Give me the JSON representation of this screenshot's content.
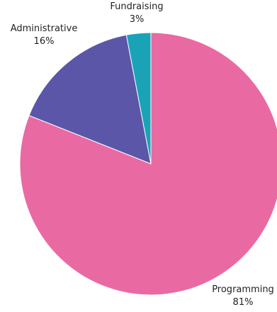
{
  "chart_data": {
    "type": "pie",
    "title": "",
    "start_angle_deg": 0,
    "direction": "clockwise",
    "slices": [
      {
        "label": "Programming",
        "value": 81,
        "value_label": "81%",
        "color": "#e96aa2"
      },
      {
        "label": "Administrative",
        "value": 16,
        "value_label": "16%",
        "color": "#5b56a8"
      },
      {
        "label": "Fundraising",
        "value": 3,
        "value_label": "3%",
        "color": "#1aa3b7"
      }
    ]
  }
}
